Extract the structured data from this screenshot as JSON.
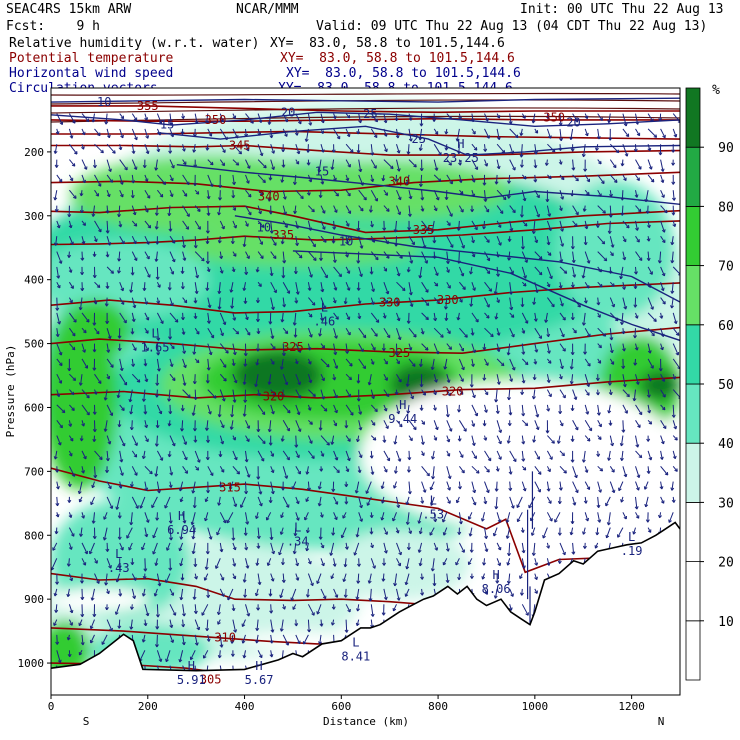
{
  "header": {
    "model": "SEAC4RS 15km ARW",
    "org": "NCAR/MMM",
    "init": "Init: 00 UTC Thu 22 Aug 13",
    "fcst": "Fcst:    9 h",
    "valid": "Valid: 09 UTC Thu 22 Aug 13 (04 CDT Thu 22 Aug 13)",
    "fields": [
      {
        "name": "Relative humidity (w.r.t. water)",
        "xy": "XY=  83.0, 58.8 to 101.5,144.6",
        "color": "#000000"
      },
      {
        "name": "Potential temperature",
        "xy": "XY=  83.0, 58.8 to 101.5,144.6",
        "color": "#8b0000"
      },
      {
        "name": "Horizontal wind speed",
        "xy": "XY=  83.0, 58.8 to 101.5,144.6",
        "color": "#00008b"
      },
      {
        "name": "Circulation vectors",
        "xy": "XY=  83.0, 58.8 to 101.5,144.6",
        "color": "#00008b"
      }
    ]
  },
  "colorbar": {
    "unit": "%",
    "levels": [
      10,
      20,
      30,
      40,
      50,
      60,
      70,
      80,
      90
    ],
    "colors": [
      "#ffffff",
      "#ffffff",
      "#ffffff",
      "#ccf5e8",
      "#66e6c0",
      "#33d9a6",
      "#66e066",
      "#33cc33",
      "#22aa44",
      "#117722"
    ]
  },
  "chart_data": {
    "type": "heatmap",
    "xlabel": "Distance (km)",
    "ylabel": "Pressure (hPa)",
    "x_ticks": [
      0,
      200,
      400,
      600,
      800,
      1000,
      1200
    ],
    "y_ticks": [
      200,
      300,
      400,
      500,
      600,
      700,
      800,
      900,
      1000
    ],
    "xlim": [
      0,
      1300
    ],
    "ylim": [
      1050,
      100
    ],
    "direction_labels": {
      "left": "S",
      "right": "N"
    },
    "theta_contours": [
      {
        "label": "355",
        "x": 200,
        "p": 128
      },
      {
        "label": "350",
        "x": 340,
        "p": 150
      },
      {
        "label": "350",
        "x": 1040,
        "p": 146
      },
      {
        "label": "345",
        "x": 390,
        "p": 190
      },
      {
        "label": "340",
        "x": 450,
        "p": 270
      },
      {
        "label": "340",
        "x": 720,
        "p": 246
      },
      {
        "label": "335",
        "x": 480,
        "p": 330
      },
      {
        "label": "335",
        "x": 770,
        "p": 322
      },
      {
        "label": "330",
        "x": 700,
        "p": 436
      },
      {
        "label": "330",
        "x": 820,
        "p": 432
      },
      {
        "label": "325",
        "x": 500,
        "p": 505
      },
      {
        "label": "325",
        "x": 720,
        "p": 515
      },
      {
        "label": "320",
        "x": 460,
        "p": 583
      },
      {
        "label": "320",
        "x": 830,
        "p": 575
      },
      {
        "label": "315",
        "x": 370,
        "p": 725
      },
      {
        "label": "310",
        "x": 360,
        "p": 960
      },
      {
        "label": "305",
        "x": 330,
        "p": 1026
      }
    ],
    "wind_contours": [
      {
        "label": "10",
        "x": 110,
        "p": 122
      },
      {
        "label": "15",
        "x": 240,
        "p": 157
      },
      {
        "label": "20",
        "x": 490,
        "p": 138
      },
      {
        "label": "25",
        "x": 660,
        "p": 141
      },
      {
        "label": "20",
        "x": 1080,
        "p": 154
      },
      {
        "label": "25",
        "x": 760,
        "p": 180
      },
      {
        "label": "15",
        "x": 560,
        "p": 231
      },
      {
        "label": "10",
        "x": 440,
        "p": 318
      },
      {
        "label": "10",
        "x": 610,
        "p": 340
      }
    ],
    "extrema": [
      {
        "type": "L",
        "value": "1.65",
        "x": 215,
        "p": 497
      },
      {
        "type": "L",
        "value": ".46",
        "x": 565,
        "p": 456
      },
      {
        "type": "H",
        "value": "9.44",
        "x": 727,
        "p": 609
      },
      {
        "type": "H",
        "value": "23.25",
        "x": 847,
        "p": 200
      },
      {
        "type": "L",
        "value": ".53",
        "x": 790,
        "p": 758
      },
      {
        "type": "H",
        "value": "6.94",
        "x": 270,
        "p": 782
      },
      {
        "type": "L",
        "value": ".34",
        "x": 510,
        "p": 800
      },
      {
        "type": "L",
        "value": ".43",
        "x": 140,
        "p": 842
      },
      {
        "type": "H",
        "value": "8.06",
        "x": 920,
        "p": 875
      },
      {
        "type": "L",
        "value": ".19",
        "x": 1200,
        "p": 815
      },
      {
        "type": "L",
        "value": "8.41",
        "x": 630,
        "p": 980
      },
      {
        "type": "H",
        "value": "5.91",
        "x": 290,
        "p": 1017
      },
      {
        "type": "H",
        "value": "5.67",
        "x": 430,
        "p": 1017
      }
    ]
  }
}
